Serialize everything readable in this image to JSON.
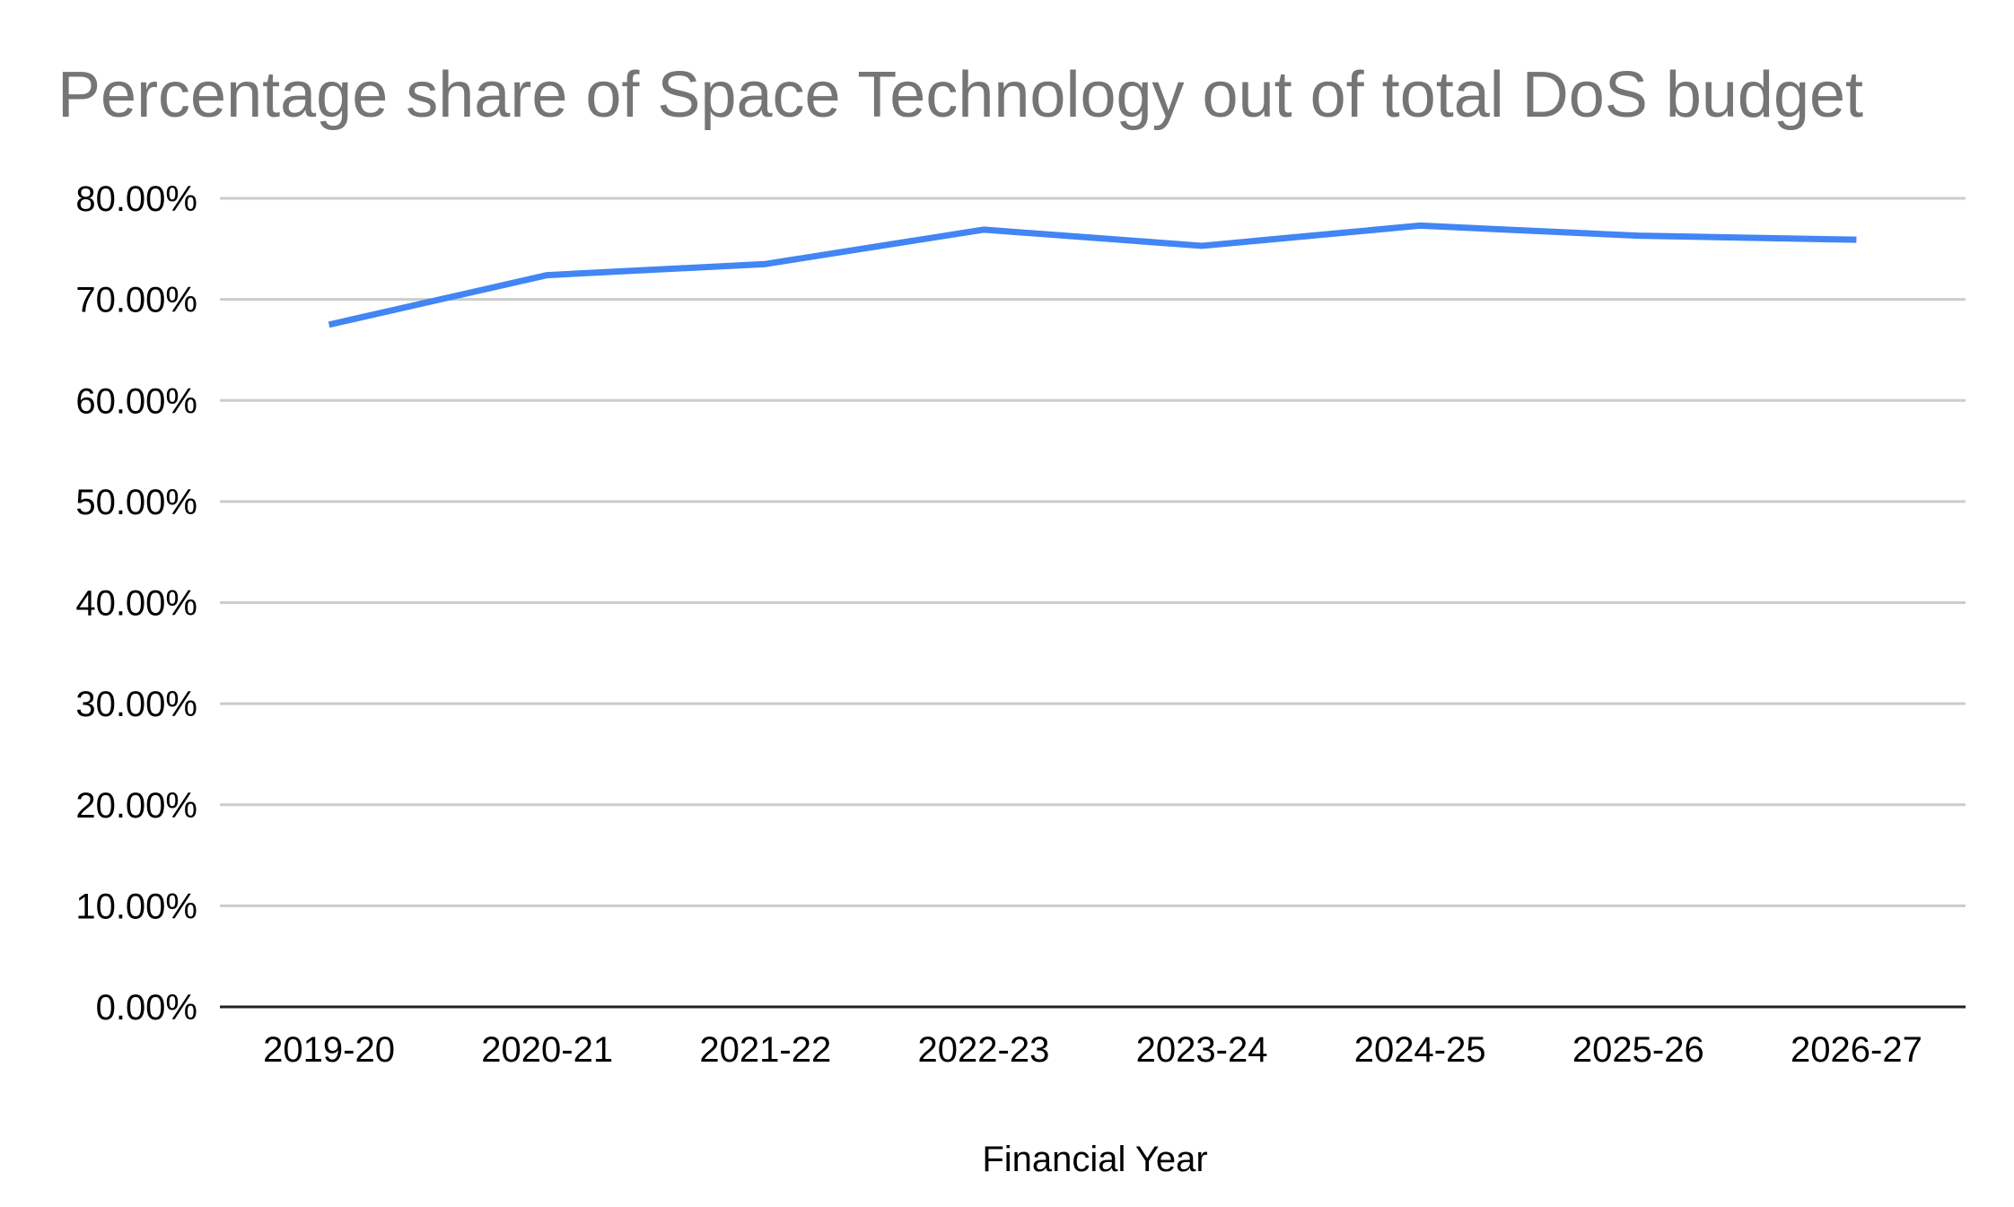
{
  "chart_data": {
    "type": "line",
    "title": "Percentage share of Space Technology out of total DoS budget",
    "xlabel": "Financial Year",
    "ylabel": "",
    "categories": [
      "2019-20",
      "2020-21",
      "2021-22",
      "2022-23",
      "2023-24",
      "2024-25",
      "2025-26",
      "2026-27"
    ],
    "series": [
      {
        "name": "Percentage share of Space Technology",
        "values": [
          67.5,
          72.4,
          73.5,
          76.9,
          75.3,
          77.3,
          76.3,
          75.9
        ],
        "color": "#4285f4"
      }
    ],
    "ylim": [
      0,
      80
    ],
    "yticks": [
      0,
      10,
      20,
      30,
      40,
      50,
      60,
      70,
      80
    ],
    "ytick_labels": [
      "0.00%",
      "10.00%",
      "20.00%",
      "30.00%",
      "40.00%",
      "50.00%",
      "60.00%",
      "70.00%",
      "80.00%"
    ],
    "grid": true,
    "legend": "none"
  },
  "colors": {
    "title": "#757575",
    "grid": "#cccccc",
    "axis": "#222222",
    "text": "#000000"
  }
}
